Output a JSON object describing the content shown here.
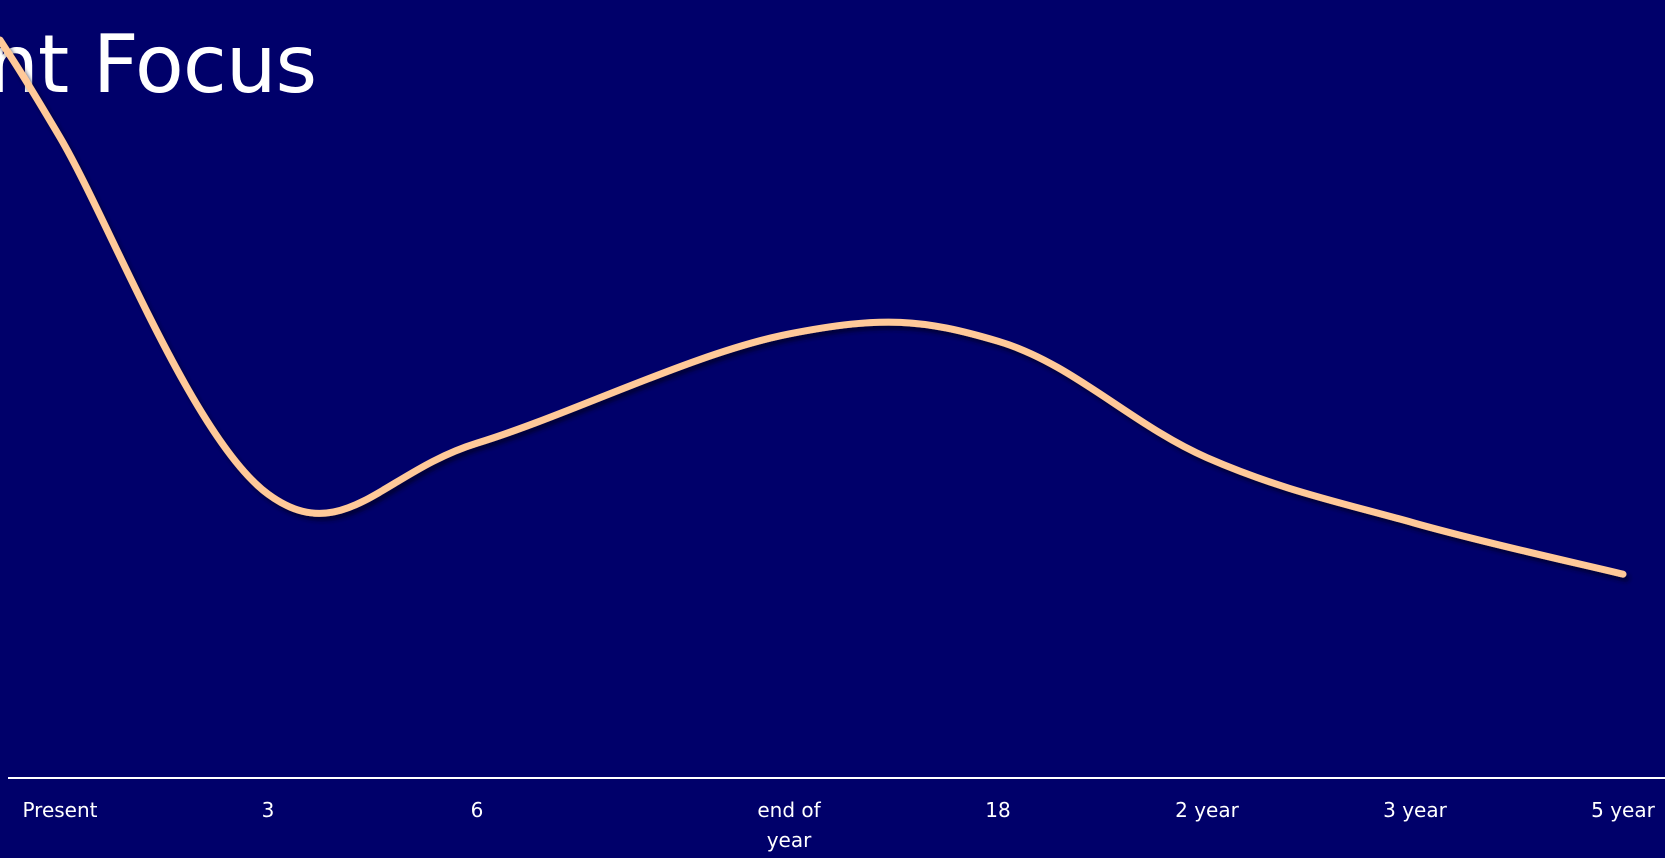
{
  "slide": {
    "title": "ent Focus"
  },
  "chart_data": {
    "type": "line",
    "title": "",
    "xlabel": "",
    "ylabel": "",
    "categories": [
      "Present",
      "3",
      "6",
      "end of year",
      "18",
      "2 year",
      "3 year",
      "5 year"
    ],
    "tick_lines": [
      [
        "Present"
      ],
      [
        "3"
      ],
      [
        "6"
      ],
      [
        "end of",
        "year"
      ],
      [
        "18"
      ],
      [
        "2 year"
      ],
      [
        "3 year"
      ],
      [
        "5 year"
      ]
    ],
    "series": [
      {
        "values": [
          8.8,
          3.9,
          4.6,
          6.1,
          6.0,
          4.4,
          3.5,
          2.8
        ]
      }
    ],
    "ylim": [
      0,
      10
    ],
    "grid": false,
    "legend": "none",
    "line_color": "#ffc999",
    "axis_color": "#ffffff"
  }
}
